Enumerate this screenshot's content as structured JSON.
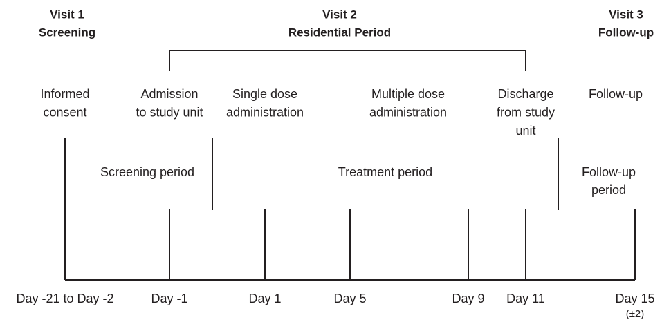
{
  "visits": [
    {
      "title": "Visit 1",
      "subtitle": "Screening"
    },
    {
      "title": "Visit 2",
      "subtitle": "Residential Period"
    },
    {
      "title": "Visit 3",
      "subtitle": "Follow-up"
    }
  ],
  "events": [
    [
      "Informed",
      "consent"
    ],
    [
      "Admission",
      "to study unit"
    ],
    [
      "Single dose",
      "administration"
    ],
    [
      "Multiple dose",
      "administration"
    ],
    [
      "Discharge",
      "from study",
      "unit"
    ],
    [
      "Follow-up"
    ]
  ],
  "periods": [
    [
      "Screening period"
    ],
    [
      "Treatment period"
    ],
    [
      "Follow-up",
      "period"
    ]
  ],
  "days": [
    [
      "Day -21 to Day -2"
    ],
    [
      "Day -1"
    ],
    [
      "Day 1"
    ],
    [
      "Day 5"
    ],
    [
      "Day 9"
    ],
    [
      "Day 11"
    ],
    [
      "Day 15",
      "(±2)"
    ]
  ]
}
